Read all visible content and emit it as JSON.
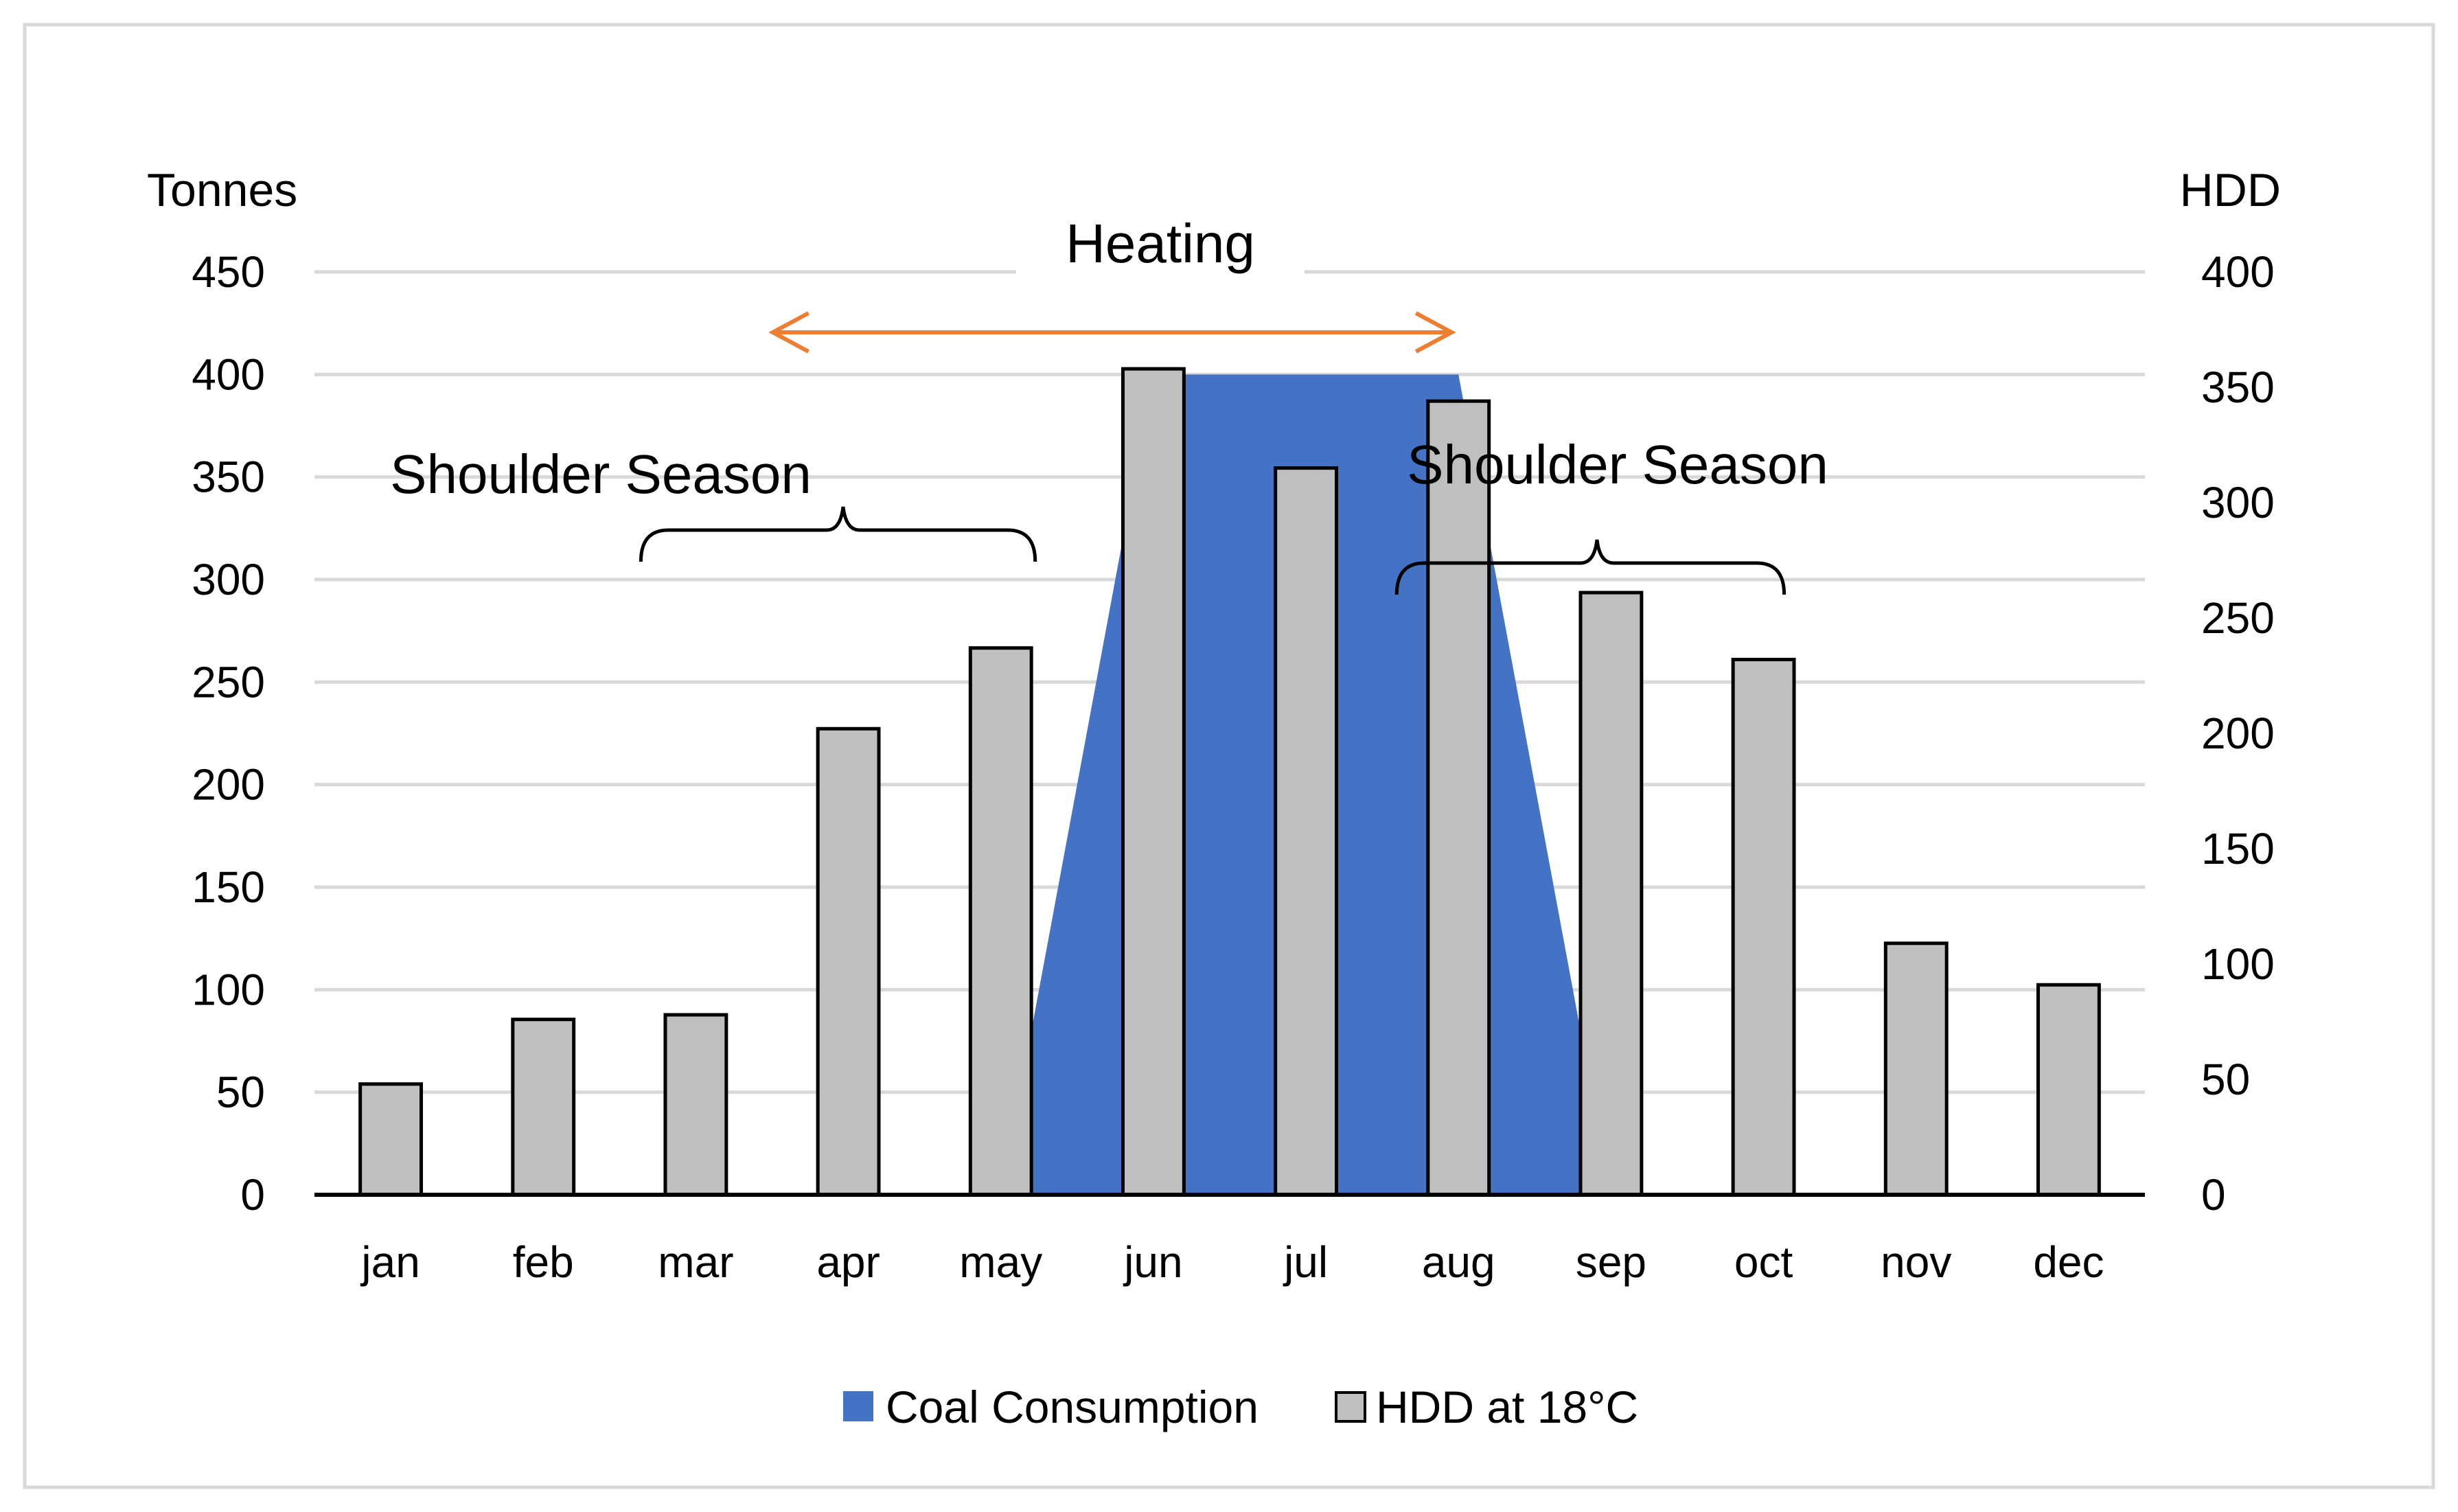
{
  "chart_data": {
    "type": "bar",
    "title": "",
    "categories": [
      "jan",
      "feb",
      "mar",
      "apr",
      "may",
      "jun",
      "jul",
      "aug",
      "sep",
      "oct",
      "nov",
      "dec"
    ],
    "series": [
      {
        "name": "Coal Consumption",
        "type": "area",
        "axis": "left",
        "color": "#4472C4",
        "values": [
          0,
          0,
          0,
          0,
          0,
          400,
          400,
          400,
          0,
          0,
          0,
          0
        ]
      },
      {
        "name": "HDD at 18°C",
        "type": "bar",
        "axis": "right",
        "color": "#BFBFBF",
        "values": [
          48,
          76,
          78,
          202,
          237,
          358,
          315,
          344,
          261,
          232,
          109,
          91
        ]
      }
    ],
    "y_left": {
      "label": "Tonnes",
      "range": [
        0,
        450
      ],
      "ticks": [
        "0",
        "50",
        "100",
        "150",
        "200",
        "250",
        "300",
        "350",
        "400",
        "450"
      ]
    },
    "y_right": {
      "label": "HDD",
      "range": [
        0,
        400
      ],
      "ticks": [
        "0",
        "50",
        "100",
        "150",
        "200",
        "250",
        "300",
        "350",
        "400"
      ]
    },
    "grid": true,
    "legend_position": "bottom",
    "legend": [
      "Coal Consumption",
      "HDD at 18°C"
    ],
    "annotations": {
      "heating": {
        "label": "Heating",
        "from": "apr",
        "to": "aug",
        "color": "#ED7D31"
      },
      "shoulder_left": {
        "label": "Shoulder Season",
        "from": "mar",
        "to": "may"
      },
      "shoulder_right": {
        "label": "Shoulder Season",
        "from": "aug",
        "to": "oct"
      }
    }
  }
}
